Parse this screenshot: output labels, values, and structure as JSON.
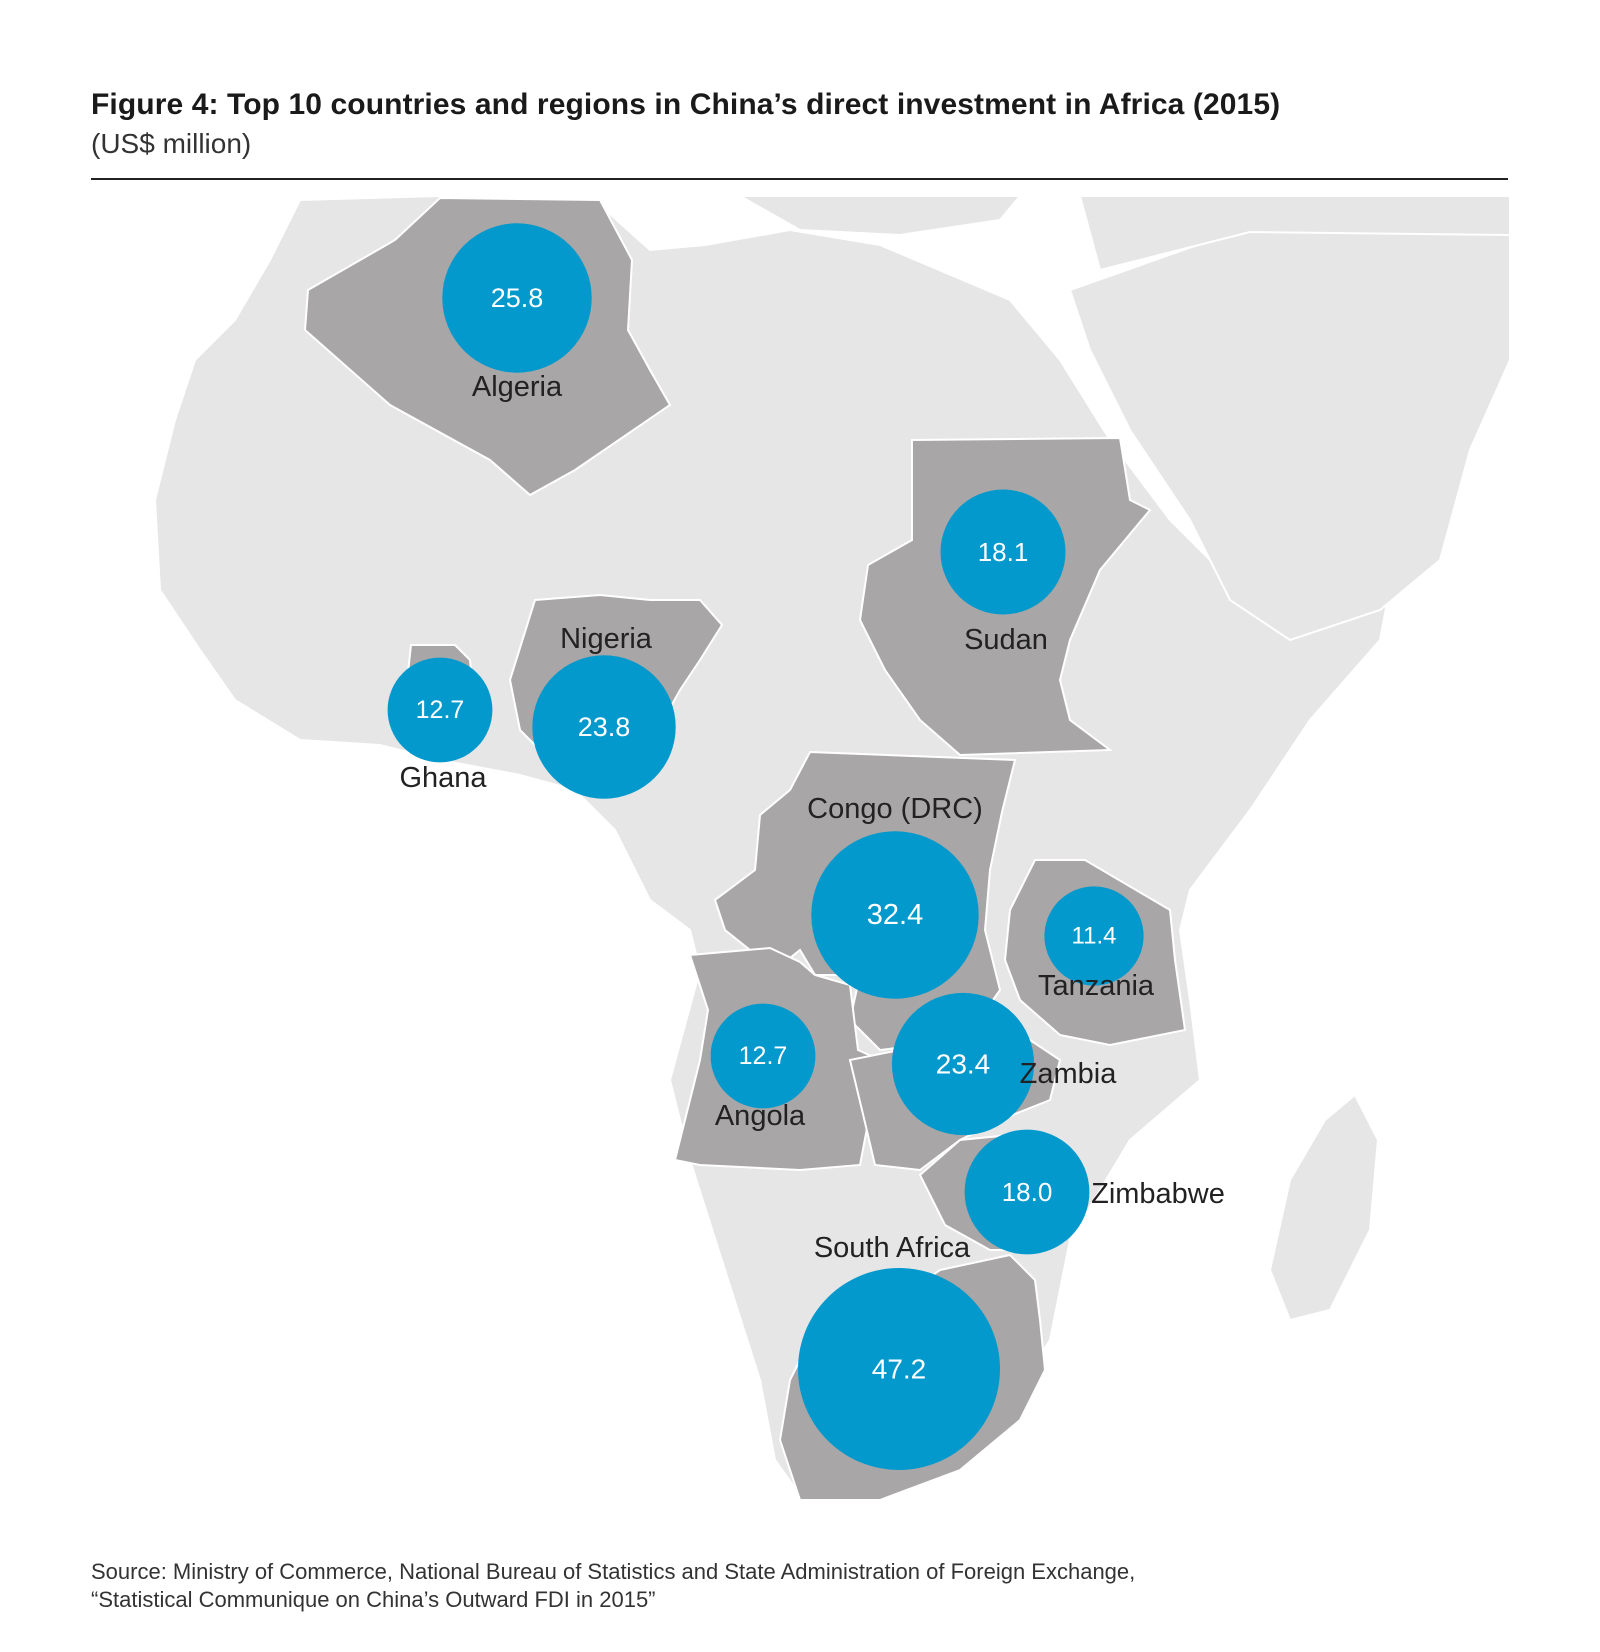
{
  "header": {
    "title": "Figure 4:  Top 10 countries and regions in China’s direct investment in Africa (2015)",
    "subtitle": "(US$ million)"
  },
  "countries": [
    {
      "key": "algeria",
      "name": "Algeria",
      "value": "25.8"
    },
    {
      "key": "sudan",
      "name": "Sudan",
      "value": "18.1"
    },
    {
      "key": "nigeria",
      "name": "Nigeria",
      "value": "23.8"
    },
    {
      "key": "ghana",
      "name": "Ghana",
      "value": "12.7"
    },
    {
      "key": "congo-drc",
      "name": "Congo (DRC)",
      "value": "32.4"
    },
    {
      "key": "tanzania",
      "name": "Tanzania",
      "value": "11.4"
    },
    {
      "key": "angola",
      "name": "Angola",
      "value": "12.7"
    },
    {
      "key": "zambia",
      "name": "Zambia",
      "value": "23.4"
    },
    {
      "key": "zimbabwe",
      "name": "Zimbabwe",
      "value": "18.0"
    },
    {
      "key": "south-africa",
      "name": "South Africa",
      "value": "47.2"
    }
  ],
  "colors": {
    "land": "#e6e6e7",
    "highlight": "#a8a6a6",
    "bubble": "#0399cd"
  },
  "footer": {
    "source_line1": "Source: Ministry of Commerce, National Bureau of Statistics and State Administration of Foreign Exchange,",
    "source_line2": "“Statistical Communique on China’s Outward FDI in 2015”"
  }
}
